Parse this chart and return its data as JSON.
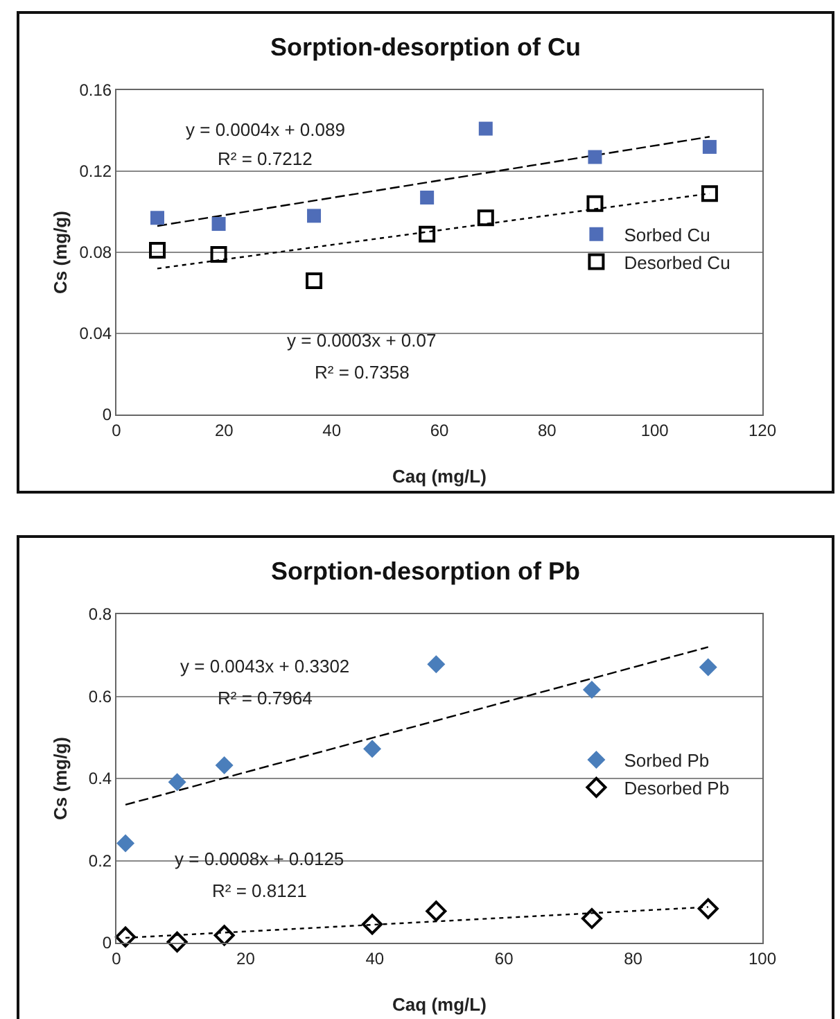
{
  "chart_data": [
    {
      "type": "scatter",
      "title": "Sorption-desorption of Cu",
      "xlabel": "Caq (mg/L)",
      "ylabel": "Cs (mg/g)",
      "xlim": [
        0,
        120
      ],
      "xticks": [
        0,
        20,
        40,
        60,
        80,
        100,
        120
      ],
      "ylim": [
        0,
        0.16
      ],
      "yticks": [
        0,
        0.04,
        0.08,
        0.12,
        0.16
      ],
      "grid": "y",
      "legend": "right",
      "x": [
        7.6,
        19,
        36.7,
        57.7,
        68.6,
        88.9,
        110.2
      ],
      "series": [
        {
          "name": "Sorbed Cu",
          "color": "#4f6db8",
          "marker": "square",
          "values": [
            0.097,
            0.094,
            0.098,
            0.107,
            0.141,
            0.127,
            0.132
          ]
        },
        {
          "name": "Desorbed Cu",
          "color": "#000000",
          "marker": "square-open",
          "values": [
            0.081,
            0.079,
            0.066,
            0.089,
            0.097,
            0.104,
            0.109
          ]
        },
        {
          "type": "line",
          "color": "#000000",
          "line_style": "dashed",
          "x": [
            7.6,
            110.2
          ],
          "values": [
            0.093,
            0.137
          ]
        },
        {
          "type": "line",
          "color": "#000000",
          "line_style": "dotted",
          "x": [
            7.6,
            110.2
          ],
          "values": [
            0.072,
            0.109
          ]
        }
      ],
      "annotations": [
        "y = 0.0004x + 0.089",
        "R² = 0.7212",
        "y = 0.0003x + 0.07",
        "R² = 0.7358"
      ]
    },
    {
      "type": "scatter",
      "title": "Sorption-desorption of Pb",
      "xlabel": "Caq (mg/L)",
      "ylabel": "Cs (mg/g)",
      "xlim": [
        0,
        100
      ],
      "xticks": [
        0,
        20,
        40,
        60,
        80,
        100
      ],
      "ylim": [
        0,
        0.8
      ],
      "yticks": [
        0,
        0.2,
        0.4,
        0.6,
        0.8
      ],
      "grid": "y",
      "legend": "right",
      "x": [
        1.4,
        9.4,
        16.7,
        39.6,
        49.5,
        73.6,
        91.6
      ],
      "series": [
        {
          "name": "Sorbed Pb",
          "color": "#4a7ebb",
          "marker": "diamond",
          "values": [
            0.242,
            0.391,
            0.432,
            0.472,
            0.678,
            0.616,
            0.671
          ]
        },
        {
          "name": "Desorbed Pb",
          "color": "#000000",
          "marker": "diamond-open",
          "values": [
            0.014,
            0.002,
            0.018,
            0.045,
            0.077,
            0.059,
            0.083
          ]
        },
        {
          "type": "line",
          "color": "#000000",
          "line_style": "dashed",
          "x": [
            1.4,
            91.6
          ],
          "values": [
            0.336,
            0.72
          ]
        },
        {
          "type": "line",
          "color": "#000000",
          "line_style": "dotted",
          "x": [
            1.4,
            91.6
          ],
          "values": [
            0.012,
            0.087
          ]
        }
      ],
      "annotations": [
        "y = 0.0043x + 0.3302",
        "R² = 0.7964",
        "y = 0.0008x + 0.0125",
        "R² = 0.8121"
      ]
    }
  ]
}
